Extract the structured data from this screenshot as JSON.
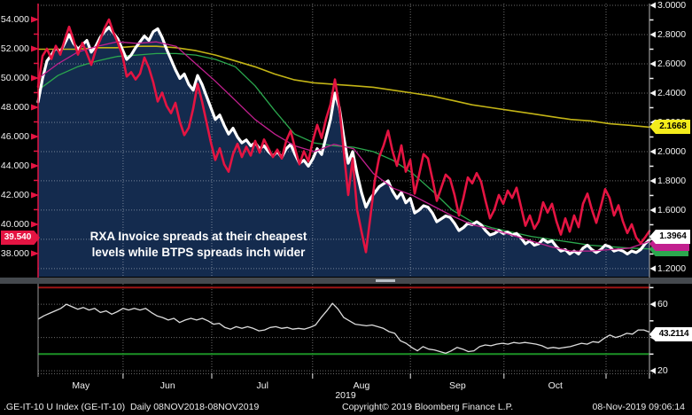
{
  "app": {
    "status_left": ".GE-IT-10 U Index (GE-IT-10)  Daily 08NOV2018-08NOV2019",
    "status_copyright": "Copyright© 2019 Bloomberg Finance L.P.",
    "status_datetime": "08-Nov-2019 09:06:14"
  },
  "annotation": {
    "line1": "RXA Invoice spreads at their cheapest",
    "line2": "levels while BTPS spreads inch wider"
  },
  "badges": {
    "left_spread": "39.540",
    "right_yellow": "2.1668",
    "right_white": "1.3964",
    "lower_white": "43.2114"
  },
  "chart_data": {
    "type": "line",
    "x_range": [
      "late Apr 2019",
      "08 Nov 2019"
    ],
    "x_axis": {
      "months": [
        "May",
        "Jun",
        "Jul",
        "Aug",
        "Sep",
        "Oct"
      ],
      "year": "2019",
      "month_label_pos": [
        0.07,
        0.212,
        0.367,
        0.529,
        0.686,
        0.846
      ],
      "month_boundaries": [
        0.139,
        0.284,
        0.449,
        0.609,
        0.762,
        0.929
      ]
    },
    "main_panel": {
      "area_fill": "#142b4e",
      "left_axis": {
        "ylim": [
          36.42,
          55.09
        ],
        "tick_values": [
          54,
          52,
          50,
          48,
          46,
          44,
          42,
          40,
          38
        ],
        "minor_values": [
          53,
          51,
          49,
          47,
          45,
          43,
          41,
          39
        ],
        "color": "#e41442"
      },
      "right_axis": {
        "ylim": [
          1.145,
          3.012
        ],
        "tick_values": [
          3.0,
          2.8,
          2.6,
          2.4,
          2.2,
          2.0,
          1.8,
          1.6,
          1.4,
          1.2
        ],
        "minor_values": [
          2.9,
          2.7,
          2.5,
          2.3,
          2.1,
          1.9,
          1.7,
          1.5,
          1.3
        ]
      },
      "series": [
        {
          "name": "rxa_spread_red",
          "axis": "left",
          "color": "#e41442",
          "width": 2.6,
          "last": 39.54,
          "values": [
            49.4,
            51.5,
            52.0,
            51.3,
            52.2,
            51.6,
            52.6,
            53.5,
            52.6,
            51.6,
            52.4,
            51.7,
            50.9,
            51.9,
            52.6,
            53.4,
            54.0,
            53.1,
            52.4,
            51.6,
            50.1,
            50.4,
            49.9,
            50.3,
            51.4,
            50.7,
            49.7,
            48.4,
            49.0,
            48.1,
            47.6,
            48.3,
            47.0,
            46.1,
            46.6,
            47.9,
            49.6,
            48.4,
            47.0,
            45.6,
            44.4,
            45.2,
            44.1,
            43.6,
            44.8,
            45.5,
            44.6,
            45.3,
            44.7,
            45.7,
            44.9,
            45.8,
            45.2,
            44.6,
            45.1,
            44.5,
            45.7,
            46.4,
            45.2,
            44.1,
            45.0,
            44.3,
            45.7,
            46.8,
            45.9,
            47.2,
            48.2,
            49.9,
            48.0,
            45.0,
            42.0,
            44.5,
            41.0,
            39.5,
            38.1,
            40.5,
            43.0,
            44.6,
            45.4,
            46.4,
            45.0,
            44.0,
            45.4,
            43.6,
            44.4,
            42.1,
            43.4,
            44.8,
            44.5,
            43.1,
            41.6,
            42.5,
            43.4,
            43.1,
            42.0,
            40.6,
            41.8,
            43.2,
            42.8,
            43.5,
            42.9,
            41.6,
            40.4,
            41.0,
            42.0,
            41.4,
            42.3,
            41.8,
            42.5,
            41.2,
            39.9,
            40.6,
            39.7,
            40.2,
            41.5,
            40.8,
            41.4,
            40.2,
            39.3,
            40.4,
            39.5,
            40.6,
            39.8,
            41.4,
            42.1,
            41.0,
            40.1,
            41.2,
            42.4,
            41.8,
            40.6,
            41.3,
            40.2,
            39.4,
            40.0,
            39.1,
            38.7,
            39.1,
            39.54
          ]
        },
        {
          "name": "btps_spread_white",
          "axis": "right",
          "color": "#ffffff",
          "width": 3.2,
          "last": 1.3964,
          "values": [
            2.34,
            2.5,
            2.62,
            2.66,
            2.71,
            2.68,
            2.74,
            2.8,
            2.74,
            2.7,
            2.73,
            2.76,
            2.68,
            2.72,
            2.78,
            2.82,
            2.85,
            2.81,
            2.77,
            2.7,
            2.63,
            2.66,
            2.71,
            2.75,
            2.79,
            2.76,
            2.82,
            2.84,
            2.78,
            2.7,
            2.63,
            2.56,
            2.5,
            2.53,
            2.46,
            2.42,
            2.52,
            2.46,
            2.38,
            2.3,
            2.22,
            2.25,
            2.18,
            2.12,
            2.16,
            2.1,
            2.06,
            2.08,
            2.04,
            2.06,
            2.02,
            2.04,
            2.0,
            1.97,
            2.0,
            1.96,
            2.02,
            2.05,
            1.98,
            1.92,
            1.94,
            1.9,
            1.95,
            2.02,
            1.98,
            2.1,
            2.22,
            2.4,
            2.3,
            2.1,
            1.92,
            2.0,
            1.85,
            1.72,
            1.62,
            1.68,
            1.72,
            1.76,
            1.78,
            1.8,
            1.73,
            1.68,
            1.72,
            1.65,
            1.68,
            1.58,
            1.6,
            1.63,
            1.62,
            1.58,
            1.52,
            1.54,
            1.56,
            1.55,
            1.51,
            1.46,
            1.48,
            1.51,
            1.5,
            1.52,
            1.5,
            1.46,
            1.43,
            1.44,
            1.46,
            1.44,
            1.45,
            1.43,
            1.44,
            1.41,
            1.37,
            1.39,
            1.36,
            1.37,
            1.4,
            1.38,
            1.39,
            1.35,
            1.32,
            1.33,
            1.3,
            1.32,
            1.3,
            1.34,
            1.36,
            1.33,
            1.31,
            1.33,
            1.36,
            1.35,
            1.32,
            1.33,
            1.32,
            1.3,
            1.32,
            1.31,
            1.33,
            1.37,
            1.3964
          ]
        },
        {
          "name": "ma_magenta",
          "axis": "right",
          "color": "#c2208f",
          "width": 1.3,
          "last": 1.386,
          "values": [
            2.5,
            2.6,
            2.68,
            2.72,
            2.75,
            2.74,
            2.75,
            2.72,
            2.6,
            2.48,
            2.35,
            2.22,
            2.12,
            2.04,
            2.0,
            2.05,
            2.02,
            1.85,
            1.75,
            1.7,
            1.63,
            1.56,
            1.5,
            1.47,
            1.43,
            1.39,
            1.35,
            1.32,
            1.32,
            1.33,
            1.34,
            1.386
          ]
        },
        {
          "name": "ma_green",
          "axis": "right",
          "color": "#2ba84e",
          "width": 1.3,
          "last": 1.335,
          "values": [
            2.42,
            2.52,
            2.58,
            2.62,
            2.65,
            2.66,
            2.67,
            2.67,
            2.66,
            2.63,
            2.58,
            2.45,
            2.28,
            2.12,
            2.06,
            2.04,
            2.03,
            2.0,
            1.94,
            1.85,
            1.73,
            1.6,
            1.52,
            1.48,
            1.45,
            1.42,
            1.4,
            1.38,
            1.36,
            1.35,
            1.34,
            1.335
          ]
        },
        {
          "name": "ma_yellow",
          "axis": "right",
          "color": "#c3b416",
          "width": 1.6,
          "last": 2.1668,
          "values": [
            2.7,
            2.7,
            2.7,
            2.71,
            2.71,
            2.72,
            2.72,
            2.71,
            2.69,
            2.66,
            2.62,
            2.58,
            2.53,
            2.49,
            2.47,
            2.46,
            2.45,
            2.44,
            2.42,
            2.4,
            2.38,
            2.35,
            2.32,
            2.3,
            2.28,
            2.26,
            2.24,
            2.22,
            2.21,
            2.19,
            2.18,
            2.1668
          ]
        }
      ]
    },
    "lower_panel": {
      "axis": {
        "ylim": [
          16.3,
          72.3
        ],
        "tick_values": [
          60,
          40,
          20
        ],
        "minor_values": [
          70,
          50,
          30
        ]
      },
      "upper_band": 70,
      "lower_band": 30,
      "band_colors": {
        "upper": "#9e1414",
        "lower": "#1c9126"
      },
      "series": {
        "name": "oscillator_white",
        "color": "#dcdcdc",
        "width": 1.3,
        "last": 43.2114,
        "values": [
          51,
          53,
          54.5,
          56,
          57.5,
          60,
          58.5,
          57,
          58,
          56.5,
          57.5,
          55,
          56,
          54,
          55.5,
          57.5,
          56.5,
          57.5,
          56.5,
          57.5,
          55,
          53,
          52,
          50.5,
          51.5,
          49,
          50.5,
          51.5,
          50.5,
          51.5,
          50,
          48,
          48.5,
          46,
          45,
          46.5,
          45.5,
          46.5,
          45.5,
          44,
          44.5,
          46,
          46.5,
          45.5,
          46,
          45,
          45.5,
          45,
          46,
          47.5,
          52,
          56,
          60.5,
          57,
          52,
          50,
          48,
          47.5,
          47,
          47.5,
          46.5,
          45.5,
          43.5,
          42.5,
          38,
          36.5,
          34,
          32,
          34.5,
          33,
          32.5,
          31.5,
          30.5,
          32,
          34,
          33,
          31.5,
          32,
          34.5,
          35.5,
          35,
          36,
          36.5,
          36,
          37,
          36.5,
          37,
          36.5,
          36,
          35,
          33.5,
          34,
          33.5,
          34,
          34.5,
          35.5,
          36.5,
          36,
          37.5,
          37,
          39.5,
          41.5,
          40,
          41,
          42.5,
          42,
          44.5,
          44.5,
          43.2114
        ]
      }
    }
  }
}
